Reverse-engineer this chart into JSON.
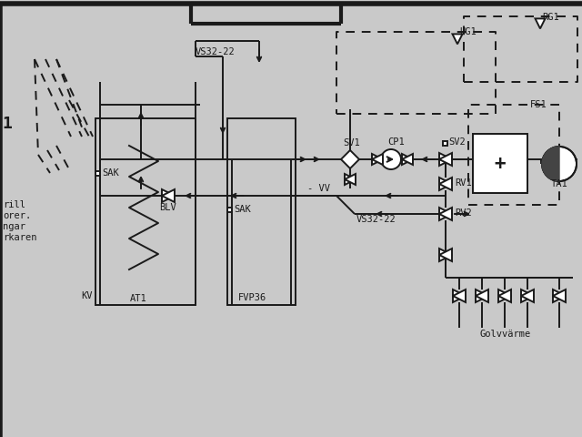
{
  "bg_color": "#c9c9c9",
  "line_color": "#1a1a1a",
  "font_size_label": 7.5,
  "lw": 1.4,
  "labels": {
    "VS32_22_top": "VS32-22",
    "VS32_22_mid": "VS32-22",
    "UG1": "UG1",
    "RG1": "RG1",
    "FS1": "FS1",
    "SV1": "SV1",
    "SV2": "SV2",
    "CP1": "CP1",
    "BLV": "BLV",
    "SAK_left": "SAK",
    "SAK_mid": "SAK",
    "KV": "KV",
    "AT1": "AT1",
    "FVP36": "FVP36",
    "RV1": "RV1",
    "RV2": "RV2",
    "TA1": "TA1",
    "VV": "VV",
    "Golvvarme": "Golvvärme"
  }
}
